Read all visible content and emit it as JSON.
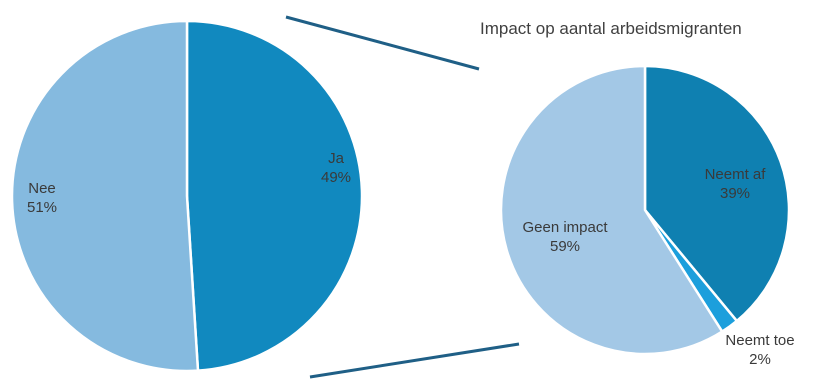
{
  "chart_data": [
    {
      "type": "pie",
      "title": "",
      "slices": [
        {
          "label": "Ja",
          "value": 49,
          "value_label": "49%",
          "color": "#1189bf"
        },
        {
          "label": "Nee",
          "value": 51,
          "value_label": "51%",
          "color": "#85badf"
        }
      ]
    },
    {
      "type": "pie",
      "title": "Impact op aantal arbeidsmigranten",
      "slices": [
        {
          "label": "Neemt af",
          "value": 39,
          "value_label": "39%",
          "color": "#0f80b1"
        },
        {
          "label": "Neemt toe",
          "value": 2,
          "value_label": "2%",
          "color": "#1c9fdc"
        },
        {
          "label": "Geen impact",
          "value": 59,
          "value_label": "59%",
          "color": "#a3c8e6"
        }
      ]
    }
  ],
  "colors": {
    "connector": "#1f5f86",
    "slice_border": "#ffffff"
  }
}
